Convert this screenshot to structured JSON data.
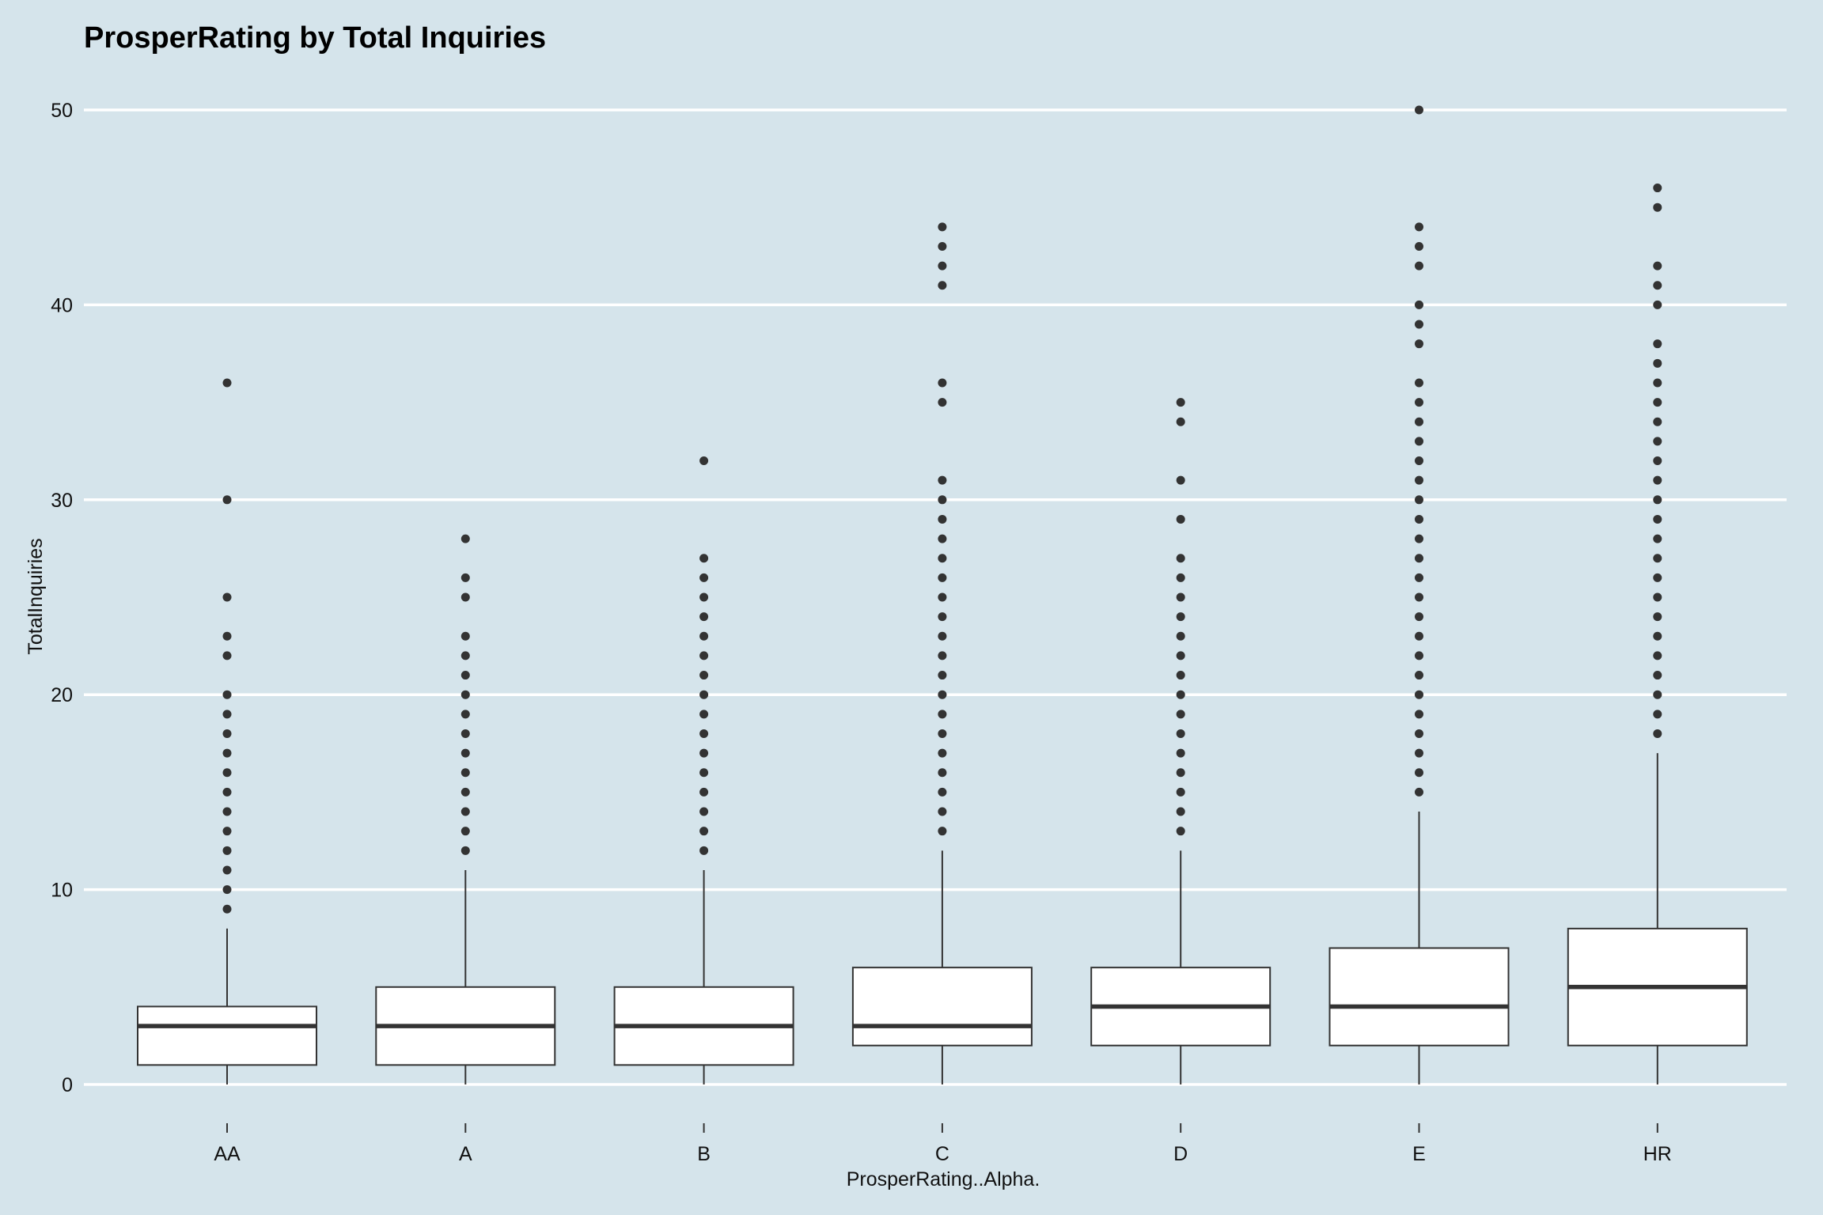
{
  "chart_data": {
    "type": "boxplot",
    "title": "ProsperRating by Total Inquiries",
    "xlabel": "ProsperRating..Alpha.",
    "ylabel": "TotalInquiries",
    "ylim": [
      0,
      50
    ],
    "yticks": [
      0,
      10,
      20,
      30,
      40,
      50
    ],
    "grid": "horizontal major gridlines",
    "categories": [
      "AA",
      "A",
      "B",
      "C",
      "D",
      "E",
      "HR"
    ],
    "boxes": [
      {
        "category": "AA",
        "whisker_low": 0,
        "q1": 1,
        "median": 3,
        "q3": 4,
        "whisker_high": 8,
        "outliers": [
          9,
          10,
          11,
          12,
          13,
          14,
          15,
          16,
          17,
          18,
          19,
          20,
          22,
          23,
          25,
          30,
          36
        ]
      },
      {
        "category": "A",
        "whisker_low": 0,
        "q1": 1,
        "median": 3,
        "q3": 5,
        "whisker_high": 11,
        "outliers": [
          12,
          13,
          14,
          15,
          16,
          17,
          18,
          19,
          20,
          21,
          22,
          23,
          25,
          26,
          28
        ]
      },
      {
        "category": "B",
        "whisker_low": 0,
        "q1": 1,
        "median": 3,
        "q3": 5,
        "whisker_high": 11,
        "outliers": [
          12,
          13,
          14,
          15,
          16,
          17,
          18,
          19,
          20,
          21,
          22,
          23,
          24,
          25,
          26,
          27,
          32
        ]
      },
      {
        "category": "C",
        "whisker_low": 0,
        "q1": 2,
        "median": 3,
        "q3": 6,
        "whisker_high": 12,
        "outliers": [
          13,
          14,
          15,
          16,
          17,
          18,
          19,
          20,
          21,
          22,
          23,
          24,
          25,
          26,
          27,
          28,
          29,
          30,
          31,
          35,
          36,
          41,
          42,
          43,
          44
        ]
      },
      {
        "category": "D",
        "whisker_low": 0,
        "q1": 2,
        "median": 4,
        "q3": 6,
        "whisker_high": 12,
        "outliers": [
          13,
          14,
          15,
          16,
          17,
          18,
          19,
          20,
          21,
          22,
          23,
          24,
          25,
          26,
          27,
          29,
          31,
          34,
          35
        ]
      },
      {
        "category": "E",
        "whisker_low": 0,
        "q1": 2,
        "median": 4,
        "q3": 7,
        "whisker_high": 14,
        "outliers": [
          15,
          16,
          17,
          18,
          19,
          20,
          21,
          22,
          23,
          24,
          25,
          26,
          27,
          28,
          29,
          30,
          31,
          32,
          33,
          34,
          35,
          36,
          38,
          39,
          40,
          42,
          43,
          44,
          50
        ]
      },
      {
        "category": "HR",
        "whisker_low": 0,
        "q1": 2,
        "median": 5,
        "q3": 8,
        "whisker_high": 17,
        "outliers": [
          18,
          19,
          20,
          21,
          22,
          23,
          24,
          25,
          26,
          27,
          28,
          29,
          30,
          31,
          32,
          33,
          34,
          35,
          36,
          37,
          38,
          40,
          41,
          42,
          45,
          46
        ]
      }
    ],
    "colors": {
      "background": "#d5e4eb",
      "gridline": "#ffffff",
      "box_fill": "#ffffff",
      "box_stroke": "#333333",
      "outlier": "#333333"
    }
  }
}
